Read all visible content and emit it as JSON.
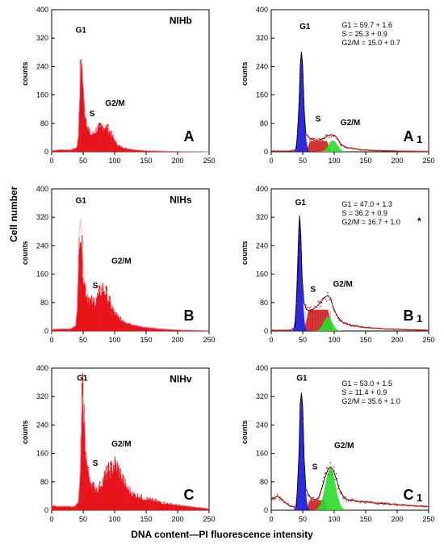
{
  "figure": {
    "ylabel": "Cell number",
    "xlabel": "DNA content—PI fluorescence intensity"
  },
  "chart_data": [
    {
      "type": "histogram",
      "panel": "A",
      "sample": "NIHb",
      "ylabel": "counts",
      "xlim": [
        0,
        250
      ],
      "ylim": [
        0,
        400
      ],
      "xticks": [
        0,
        50,
        100,
        150,
        200,
        250
      ],
      "yticks": [
        0,
        80,
        160,
        240,
        320,
        400
      ],
      "peak_labels": [
        "G1",
        "S",
        "G2/M"
      ],
      "profile": [
        [
          0,
          3
        ],
        [
          15,
          6
        ],
        [
          30,
          5
        ],
        [
          40,
          12
        ],
        [
          43,
          60
        ],
        [
          45,
          200
        ],
        [
          47,
          282
        ],
        [
          49,
          220
        ],
        [
          51,
          140
        ],
        [
          54,
          100
        ],
        [
          57,
          75
        ],
        [
          60,
          55
        ],
        [
          63,
          48
        ],
        [
          66,
          50
        ],
        [
          70,
          60
        ],
        [
          74,
          66
        ],
        [
          78,
          70
        ],
        [
          82,
          72
        ],
        [
          86,
          70
        ],
        [
          90,
          64
        ],
        [
          95,
          50
        ],
        [
          100,
          32
        ],
        [
          105,
          20
        ],
        [
          110,
          14
        ],
        [
          120,
          9
        ],
        [
          135,
          5
        ],
        [
          150,
          3
        ],
        [
          170,
          2
        ],
        [
          200,
          1
        ],
        [
          250,
          0
        ]
      ]
    },
    {
      "type": "histogram-fit",
      "panel": "A1",
      "ylabel": "counts",
      "xlim": [
        0,
        250
      ],
      "ylim": [
        0,
        400
      ],
      "xticks": [
        0,
        50,
        100,
        150,
        200,
        250
      ],
      "yticks": [
        0,
        80,
        160,
        240,
        320,
        400
      ],
      "peak_labels": [
        "G1",
        "S",
        "G2/M"
      ],
      "stats": [
        "G1      = 59.7 + 1.6",
        "S        = 25.3 + 0.9",
        "G2/M = 15.0 + 0.7"
      ],
      "stats_star": "",
      "components": {
        "g1": {
          "center": 48,
          "sigma": 3.8,
          "height": 278
        },
        "s": {
          "start": 55,
          "end": 95,
          "height": 30
        },
        "g2m": {
          "center": 98,
          "sigma": 7,
          "height": 32
        }
      },
      "data_curve": [
        [
          30,
          2
        ],
        [
          40,
          6
        ],
        [
          44,
          120
        ],
        [
          46,
          240
        ],
        [
          48,
          282
        ],
        [
          50,
          240
        ],
        [
          52,
          120
        ],
        [
          55,
          50
        ],
        [
          60,
          40
        ],
        [
          65,
          35
        ],
        [
          70,
          32
        ],
        [
          75,
          33
        ],
        [
          80,
          36
        ],
        [
          85,
          40
        ],
        [
          90,
          45
        ],
        [
          95,
          48
        ],
        [
          100,
          47
        ],
        [
          105,
          38
        ],
        [
          110,
          22
        ],
        [
          120,
          12
        ],
        [
          140,
          6
        ],
        [
          160,
          4
        ],
        [
          200,
          2
        ],
        [
          250,
          1
        ]
      ],
      "colors": {
        "g1": "#1a1adb",
        "s": "#d42121",
        "g2m": "#2bdb2b"
      }
    },
    {
      "type": "histogram",
      "panel": "B",
      "sample": "NIHs",
      "ylabel": "counts",
      "xlim": [
        0,
        250
      ],
      "ylim": [
        0,
        400
      ],
      "xticks": [
        0,
        50,
        100,
        150,
        200,
        250
      ],
      "yticks": [
        0,
        80,
        160,
        240,
        320,
        400
      ],
      "peak_labels": [
        "G1",
        "S",
        "G2/M"
      ],
      "profile": [
        [
          0,
          4
        ],
        [
          15,
          6
        ],
        [
          30,
          6
        ],
        [
          38,
          14
        ],
        [
          41,
          80
        ],
        [
          43,
          220
        ],
        [
          45,
          325
        ],
        [
          47,
          280
        ],
        [
          49,
          200
        ],
        [
          52,
          140
        ],
        [
          55,
          110
        ],
        [
          58,
          95
        ],
        [
          62,
          85
        ],
        [
          66,
          80
        ],
        [
          70,
          88
        ],
        [
          74,
          100
        ],
        [
          78,
          115
        ],
        [
          82,
          120
        ],
        [
          86,
          110
        ],
        [
          90,
          92
        ],
        [
          95,
          70
        ],
        [
          100,
          50
        ],
        [
          110,
          32
        ],
        [
          120,
          24
        ],
        [
          135,
          14
        ],
        [
          150,
          10
        ],
        [
          170,
          6
        ],
        [
          200,
          3
        ],
        [
          250,
          1
        ]
      ]
    },
    {
      "type": "histogram-fit",
      "panel": "B1",
      "ylabel": "counts",
      "xlim": [
        0,
        250
      ],
      "ylim": [
        0,
        400
      ],
      "xticks": [
        0,
        50,
        100,
        150,
        200,
        250
      ],
      "yticks": [
        0,
        80,
        160,
        240,
        320,
        400
      ],
      "peak_labels": [
        "G1",
        "S",
        "G2/M"
      ],
      "stats": [
        "G1      = 47.0 + 1.3",
        "S        = 36.2 + 0.9",
        "G2/M = 16.7 + 1.0"
      ],
      "stats_star": "*",
      "components": {
        "g1": {
          "center": 45,
          "sigma": 3.6,
          "height": 320
        },
        "s": {
          "start": 52,
          "end": 98,
          "height": 60
        },
        "g2m": {
          "center": 90,
          "sigma": 7,
          "height": 40
        }
      },
      "data_curve": [
        [
          30,
          2
        ],
        [
          38,
          10
        ],
        [
          42,
          150
        ],
        [
          44,
          290
        ],
        [
          45,
          325
        ],
        [
          47,
          270
        ],
        [
          49,
          150
        ],
        [
          52,
          80
        ],
        [
          56,
          60
        ],
        [
          60,
          58
        ],
        [
          65,
          60
        ],
        [
          70,
          66
        ],
        [
          75,
          74
        ],
        [
          80,
          85
        ],
        [
          85,
          95
        ],
        [
          90,
          100
        ],
        [
          94,
          92
        ],
        [
          98,
          70
        ],
        [
          104,
          44
        ],
        [
          112,
          26
        ],
        [
          125,
          16
        ],
        [
          150,
          10
        ],
        [
          180,
          6
        ],
        [
          210,
          4
        ],
        [
          250,
          2
        ]
      ],
      "colors": {
        "g1": "#1a1adb",
        "s": "#d42121",
        "g2m": "#2bdb2b"
      }
    },
    {
      "type": "histogram",
      "panel": "C",
      "sample": "NIHv",
      "ylabel": "counts",
      "xlim": [
        0,
        250
      ],
      "ylim": [
        0,
        400
      ],
      "xticks": [
        0,
        50,
        100,
        150,
        200,
        250
      ],
      "yticks": [
        0,
        80,
        160,
        240,
        320,
        400
      ],
      "peak_labels": [
        "G1",
        "S",
        "G2/M"
      ],
      "profile": [
        [
          0,
          12
        ],
        [
          20,
          10
        ],
        [
          35,
          10
        ],
        [
          42,
          20
        ],
        [
          45,
          80
        ],
        [
          47,
          220
        ],
        [
          49,
          330
        ],
        [
          51,
          290
        ],
        [
          53,
          200
        ],
        [
          56,
          130
        ],
        [
          60,
          90
        ],
        [
          65,
          70
        ],
        [
          70,
          60
        ],
        [
          75,
          62
        ],
        [
          80,
          80
        ],
        [
          85,
          100
        ],
        [
          90,
          110
        ],
        [
          95,
          118
        ],
        [
          100,
          130
        ],
        [
          105,
          120
        ],
        [
          110,
          100
        ],
        [
          115,
          80
        ],
        [
          120,
          60
        ],
        [
          130,
          45
        ],
        [
          145,
          35
        ],
        [
          160,
          28
        ],
        [
          180,
          20
        ],
        [
          200,
          14
        ],
        [
          220,
          10
        ],
        [
          250,
          4
        ]
      ]
    },
    {
      "type": "histogram-fit",
      "panel": "C1",
      "ylabel": "counts",
      "xlim": [
        0,
        250
      ],
      "ylim": [
        0,
        400
      ],
      "xticks": [
        0,
        50,
        100,
        150,
        200,
        250
      ],
      "yticks": [
        0,
        80,
        160,
        240,
        320,
        400
      ],
      "peak_labels": [
        "G1",
        "S",
        "G2/M"
      ],
      "stats": [
        "G1      = 53.0 + 1.5",
        "S        = 11.4 + 0.9",
        "G2/M = 35.6 + 1.0"
      ],
      "stats_star": "",
      "components": {
        "g1": {
          "center": 48,
          "sigma": 3.8,
          "height": 330
        },
        "s": {
          "start": 55,
          "end": 90,
          "height": 28
        },
        "g2m": {
          "center": 94,
          "sigma": 8,
          "height": 120
        }
      },
      "data_curve": [
        [
          0,
          30
        ],
        [
          10,
          40
        ],
        [
          20,
          25
        ],
        [
          30,
          12
        ],
        [
          40,
          8
        ],
        [
          44,
          150
        ],
        [
          46,
          300
        ],
        [
          48,
          330
        ],
        [
          50,
          290
        ],
        [
          52,
          150
        ],
        [
          55,
          60
        ],
        [
          60,
          40
        ],
        [
          65,
          32
        ],
        [
          70,
          30
        ],
        [
          75,
          35
        ],
        [
          80,
          60
        ],
        [
          85,
          90
        ],
        [
          90,
          115
        ],
        [
          94,
          122
        ],
        [
          98,
          115
        ],
        [
          103,
          90
        ],
        [
          108,
          60
        ],
        [
          114,
          40
        ],
        [
          120,
          30
        ],
        [
          140,
          25
        ],
        [
          170,
          20
        ],
        [
          200,
          16
        ],
        [
          230,
          12
        ],
        [
          250,
          10
        ]
      ],
      "colors": {
        "g1": "#1a1adb",
        "s": "#d42121",
        "g2m": "#2bdb2b"
      }
    }
  ]
}
